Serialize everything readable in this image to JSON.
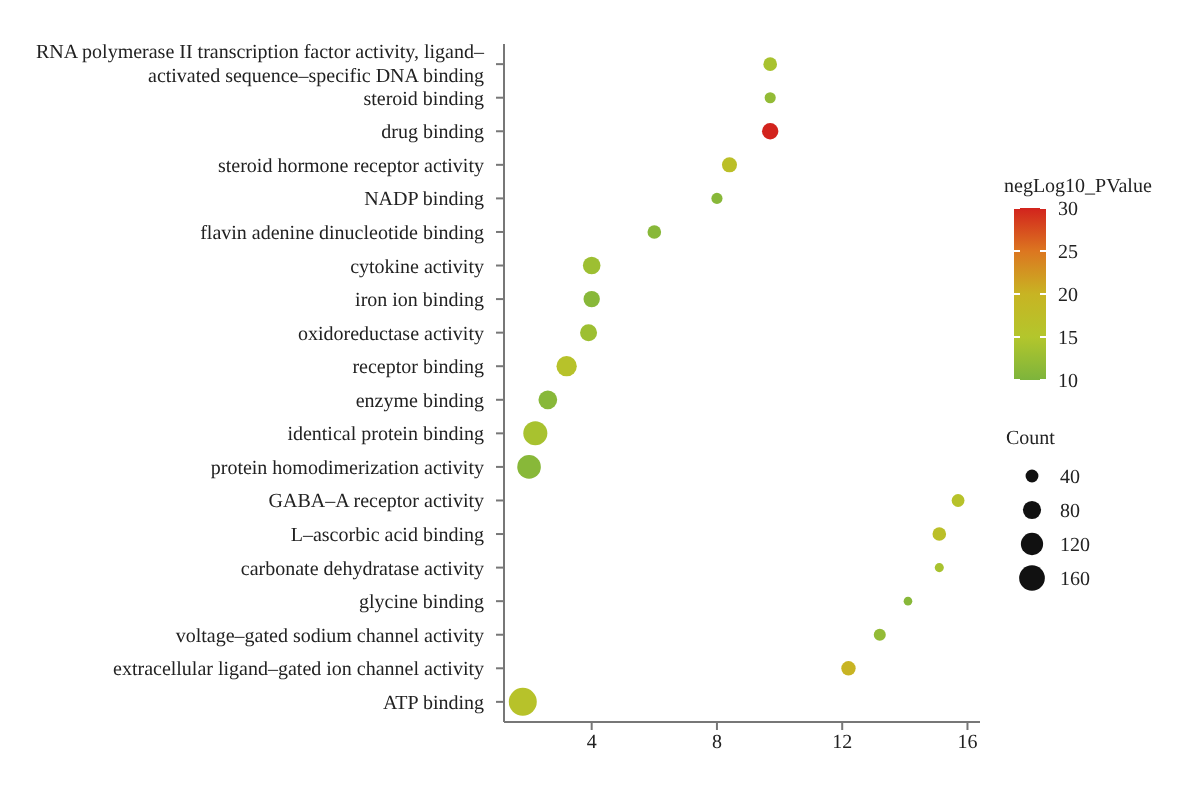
{
  "chart_data": {
    "type": "bubble",
    "categories": [
      "RNA polymerase II transcription factor activity, ligand–activated sequence–specific DNA binding",
      "steroid binding",
      "drug binding",
      "steroid hormone receptor activity",
      "NADP binding",
      "flavin adenine dinucleotide binding",
      "cytokine activity",
      "iron ion binding",
      "oxidoreductase activity",
      "receptor binding",
      "enzyme binding",
      "identical protein binding",
      "protein homodimerization activity",
      "GABA–A receptor activity",
      "L–ascorbic acid binding",
      "carbonate dehydratase activity",
      "glycine binding",
      "voltage–gated sodium channel activity",
      "extracellular ligand–gated ion channel activity",
      "ATP binding"
    ],
    "values": [
      9.7,
      9.7,
      9.7,
      8.4,
      8.0,
      6.0,
      4.0,
      4.0,
      3.9,
      3.2,
      2.6,
      2.2,
      2.0,
      15.7,
      15.1,
      15.1,
      14.1,
      13.2,
      12.2,
      1.8
    ],
    "sizes": [
      45,
      30,
      65,
      55,
      30,
      45,
      75,
      65,
      70,
      100,
      85,
      140,
      135,
      40,
      45,
      20,
      18,
      35,
      50,
      190
    ],
    "cvalues": [
      14,
      12,
      30,
      17,
      11,
      11,
      13,
      11,
      13,
      16,
      11,
      14,
      11,
      16,
      17,
      14,
      11,
      12,
      20,
      16
    ],
    "size_legend": [
      40,
      80,
      120,
      160
    ],
    "clabel": "negLog10_PValue",
    "clim": [
      10,
      30
    ],
    "cticks": [
      10,
      15,
      20,
      25,
      30
    ],
    "legend_title": "Count",
    "xlim": [
      1.2,
      16.4
    ],
    "xticks": [
      4,
      8,
      12,
      16
    ],
    "orientation": "horizontal",
    "marker": "circle"
  }
}
